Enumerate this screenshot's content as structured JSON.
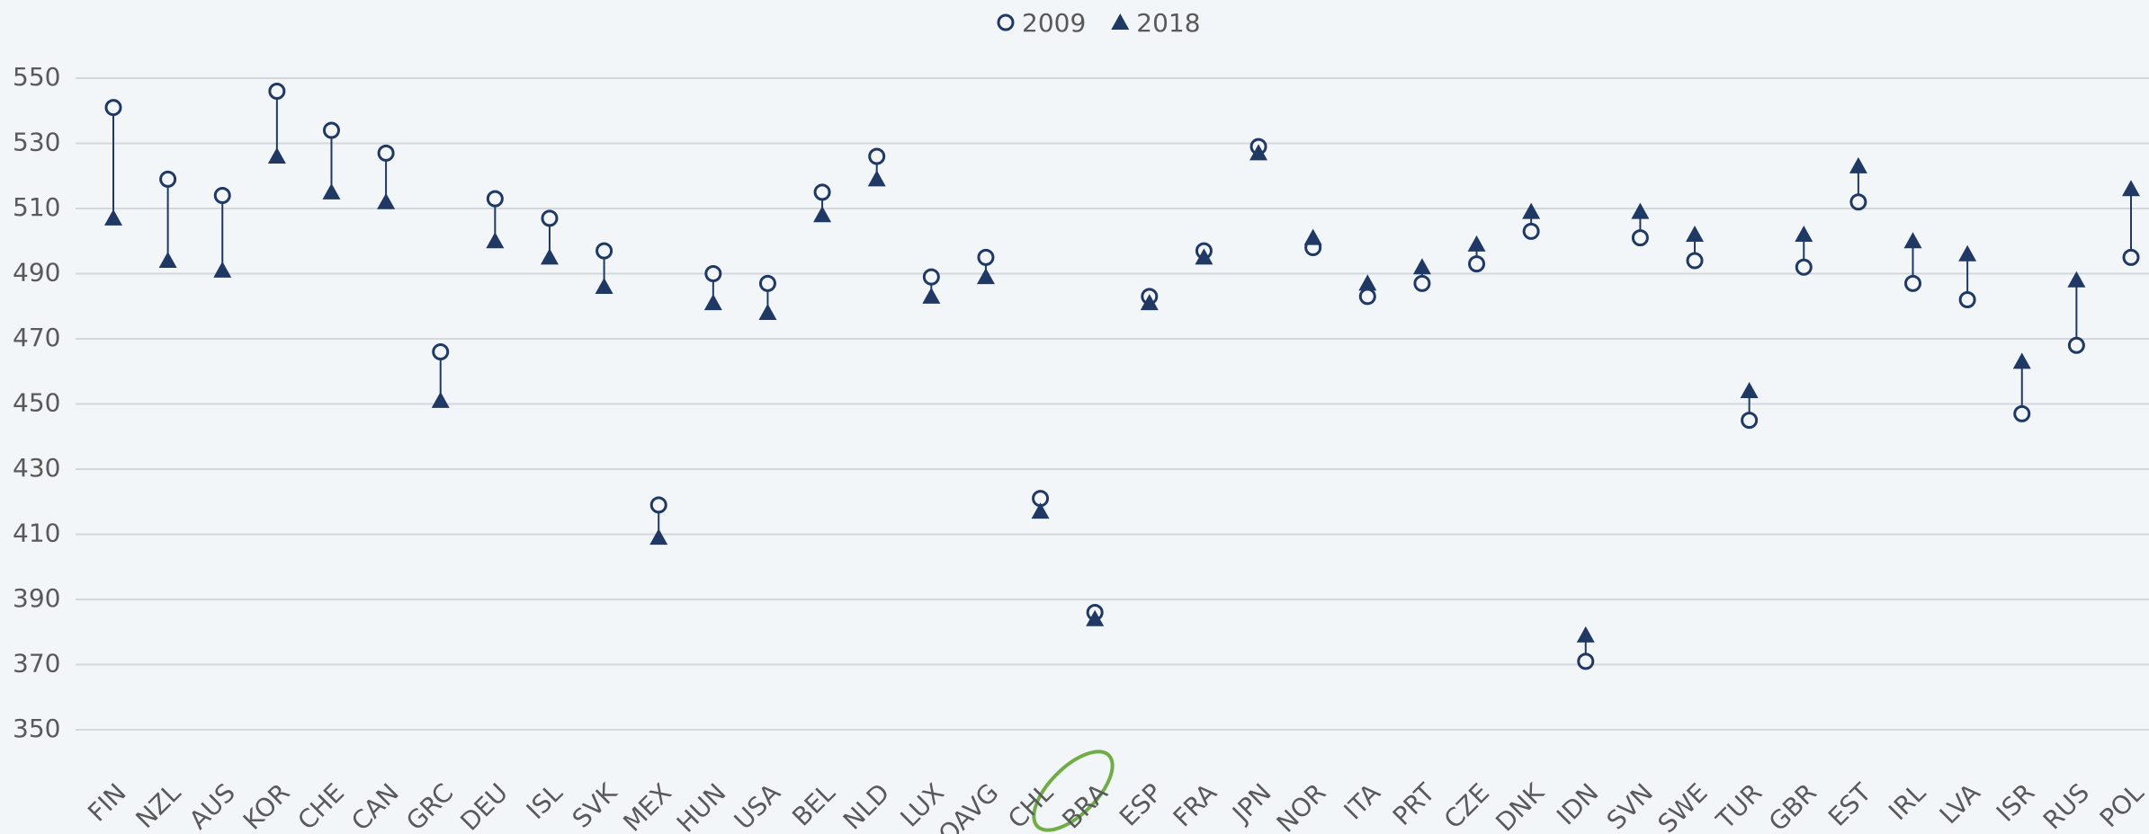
{
  "chart_data": {
    "type": "dumbbell",
    "categories": [
      "FIN",
      "NZL",
      "AUS",
      "KOR",
      "CHE",
      "CAN",
      "GRC",
      "DEU",
      "ISL",
      "SVK",
      "MEX",
      "HUN",
      "USA",
      "BEL",
      "NLD",
      "LUX",
      "OAVG",
      "CHL",
      "BRA",
      "ESP",
      "FRA",
      "JPN",
      "NOR",
      "ITA",
      "PRT",
      "CZE",
      "DNK",
      "IDN",
      "SVN",
      "SWE",
      "TUR",
      "GBR",
      "EST",
      "IRL",
      "LVA",
      "ISR",
      "RUS",
      "POL"
    ],
    "series": [
      {
        "name": "2009",
        "color": "#1f3864",
        "marker": "circle",
        "values": [
          541,
          519,
          514,
          546,
          534,
          527,
          466,
          513,
          507,
          497,
          419,
          490,
          487,
          515,
          526,
          489,
          495,
          421,
          386,
          483,
          497,
          529,
          498,
          483,
          487,
          493,
          503,
          371,
          501,
          494,
          445,
          492,
          512,
          487,
          482,
          447,
          468,
          495
        ]
      },
      {
        "name": "2018",
        "color": "#1f3864",
        "marker": "triangle",
        "values": [
          507,
          494,
          491,
          526,
          515,
          512,
          451,
          500,
          495,
          486,
          409,
          481,
          478,
          508,
          519,
          483,
          489,
          417,
          384,
          481,
          495,
          527,
          501,
          487,
          492,
          499,
          509,
          379,
          509,
          502,
          454,
          502,
          523,
          500,
          496,
          463,
          488,
          516
        ]
      }
    ],
    "ylim": [
      350,
      550
    ],
    "yticks": [
      350,
      370,
      390,
      410,
      430,
      450,
      470,
      490,
      510,
      530,
      550
    ],
    "grid": true,
    "legend": "top"
  }
}
